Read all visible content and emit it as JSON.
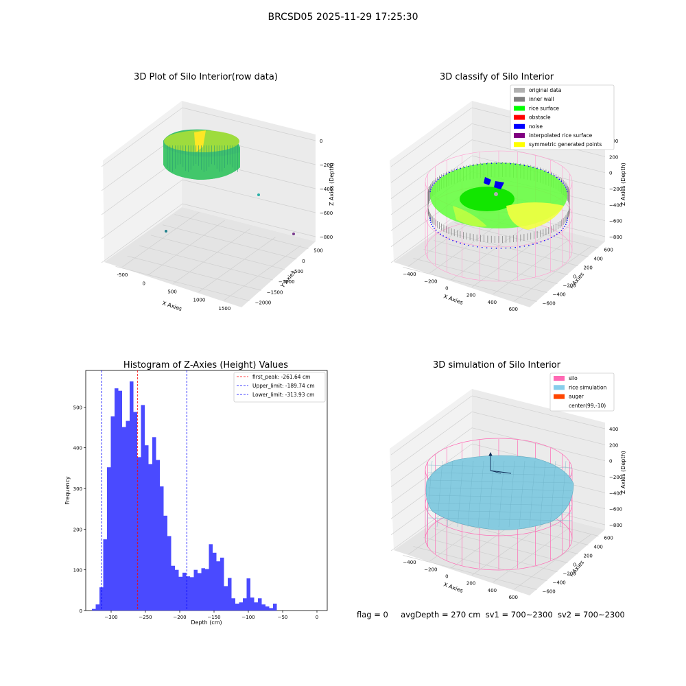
{
  "suptitle": "BRCSD05 2025-11-29 17:25:30",
  "footer": {
    "flag": "flag = 0",
    "avg_depth": "avgDepth = 270 cm",
    "sv1": "sv1 = 700~2300",
    "sv2": "sv2 = 700~2300"
  },
  "panels": {
    "raw3d": {
      "title": "3D Plot of Silo Interior(row data)",
      "xlabel": "X Axies",
      "ylabel": "Y Axies",
      "zlabel": "Z Axies (Depth)",
      "xticks": [
        "-500",
        "0",
        "500",
        "1000",
        "1500"
      ],
      "yticks": [
        "500",
        "0",
        "−500",
        "−1000",
        "−1500",
        "−2000"
      ],
      "zticks": [
        "0",
        "−200",
        "−400",
        "−600",
        "−800"
      ]
    },
    "classify3d": {
      "title": "3D classify of Silo Interior",
      "xlabel": "X Axies",
      "ylabel": "Y Axies",
      "zlabel": "Z Axies (Depth)",
      "xticks": [
        "−400",
        "−200",
        "0",
        "200",
        "400",
        "600"
      ],
      "yticks": [
        "600",
        "400",
        "200",
        "0",
        "−200",
        "−400",
        "−600"
      ],
      "zticks": [
        "400",
        "200",
        "0",
        "−200",
        "−400",
        "−600",
        "−800"
      ],
      "legend": [
        {
          "label": "original data",
          "color": "#b0b0b0"
        },
        {
          "label": "inner wall",
          "color": "#808080"
        },
        {
          "label": "rice surface",
          "color": "#00ff00"
        },
        {
          "label": "obstacle",
          "color": "#ff0000"
        },
        {
          "label": "noise",
          "color": "#0000ff"
        },
        {
          "label": "interpolated rice surface",
          "color": "#800080"
        },
        {
          "label": "symmetric generated points",
          "color": "#ffff00"
        }
      ]
    },
    "simulation3d": {
      "title": "3D simulation of Silo Interior",
      "xlabel": "X Axies",
      "ylabel": "Y Axies",
      "zlabel": "Z Axies (Depth)",
      "xticks": [
        "−400",
        "−200",
        "0",
        "200",
        "400",
        "600"
      ],
      "yticks": [
        "600",
        "400",
        "200",
        "0",
        "−200",
        "−400",
        "−600"
      ],
      "zticks": [
        "400",
        "200",
        "0",
        "−200",
        "−400",
        "−600",
        "−800"
      ],
      "legend": [
        {
          "label": "silo",
          "color": "#ff69b4"
        },
        {
          "label": "rice simulation",
          "color": "#87ceeb"
        },
        {
          "label": "auger",
          "color": "#ff4500"
        },
        {
          "label": "center(99,-10)",
          "color": ""
        }
      ]
    }
  },
  "chart_data": [
    {
      "type": "scatter",
      "title": "3D Plot of Silo Interior(row data)",
      "xlabel": "X Axies",
      "ylabel": "Y Axies",
      "zlabel": "Z Axies (Depth)",
      "xlim": [
        -700,
        2000
      ],
      "ylim": [
        -2100,
        700
      ],
      "zlim": [
        -900,
        50
      ]
    },
    {
      "type": "scatter",
      "title": "3D classify of Silo Interior",
      "xlabel": "X Axies",
      "ylabel": "Y Axies",
      "zlabel": "Z Axies (Depth)",
      "xlim": [
        -500,
        700
      ],
      "ylim": [
        -650,
        650
      ],
      "zlim": [
        -900,
        400
      ]
    },
    {
      "type": "bar",
      "title": "Histogram of Z-Axies (Height) Values",
      "xlabel": "Depth (cm)",
      "ylabel": "Frequency",
      "xlim": [
        -337,
        15
      ],
      "ylim": [
        0,
        590
      ],
      "xticks": [
        -300,
        -250,
        -200,
        -150,
        -100,
        -50,
        0
      ],
      "yticks": [
        0,
        100,
        200,
        300,
        400,
        500
      ],
      "bin_start": -328,
      "bin_width": 5.5,
      "values": [
        4,
        15,
        57,
        175,
        352,
        477,
        546,
        540,
        451,
        466,
        563,
        488,
        377,
        505,
        406,
        360,
        426,
        370,
        305,
        233,
        183,
        110,
        100,
        83,
        93,
        84,
        82,
        100,
        92,
        104,
        102,
        163,
        142,
        121,
        130,
        60,
        80,
        30,
        17,
        20,
        30,
        79,
        32,
        20,
        30,
        15,
        10,
        6,
        17,
        0
      ],
      "color": "#4a4aff",
      "reference_lines": [
        {
          "label": "first_peak: -261.64 cm",
          "x": -261.64,
          "color": "#ff0000"
        },
        {
          "label": "Upper_limit: -189.74 cm",
          "x": -189.74,
          "color": "#0000ff"
        },
        {
          "label": "Lower_limit: -313.93 cm",
          "x": -313.93,
          "color": "#0000ff"
        }
      ]
    },
    {
      "type": "scatter",
      "title": "3D simulation of Silo Interior",
      "xlabel": "X Axies",
      "ylabel": "Y Axies",
      "zlabel": "Z Axies (Depth)",
      "xlim": [
        -500,
        700
      ],
      "ylim": [
        -650,
        650
      ],
      "zlim": [
        -900,
        400
      ]
    }
  ]
}
